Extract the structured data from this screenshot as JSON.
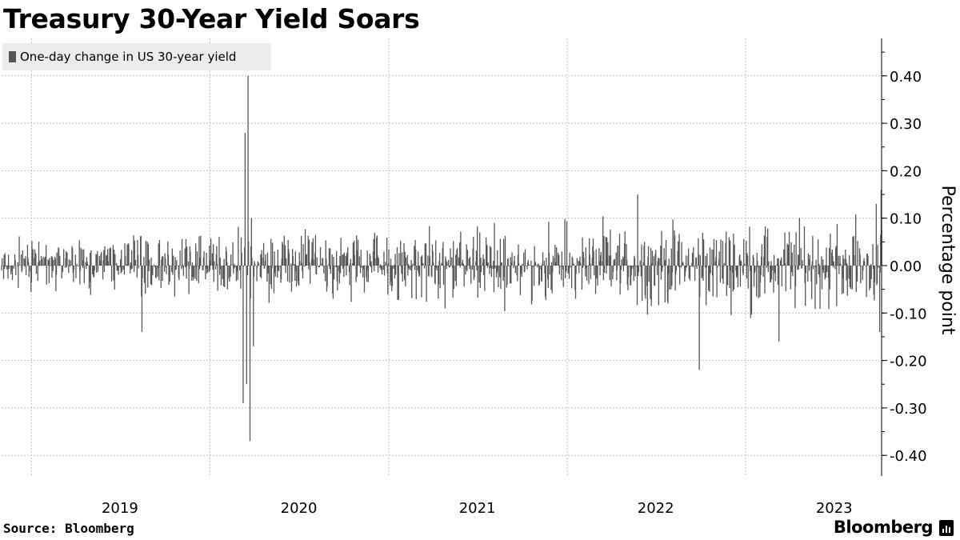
{
  "title": "Treasury 30-Year Yield Soars",
  "legend_label": "One-day change in US 30-year yield",
  "source": "Source: Bloomberg",
  "brand": "Bloomberg",
  "colors": {
    "bar": "#555555",
    "grid": "#bdbdbd",
    "legend_bg": "#ececec"
  },
  "brand_icon": "bloomberg-terminal-icon",
  "chart_data": {
    "type": "bar",
    "title": "Treasury 30-Year Yield Soars",
    "ylabel": "Percentage point",
    "xlabel": "",
    "ylim": [
      -0.45,
      0.48
    ],
    "yticks": [
      0.4,
      0.3,
      0.2,
      0.1,
      0.0,
      -0.1,
      -0.2,
      -0.3,
      -0.4
    ],
    "ytick_labels": [
      "0.40",
      "0.30",
      "0.20",
      "0.10",
      "0.00",
      "-0.10",
      "-0.20",
      "-0.30",
      "-0.40"
    ],
    "x_range": [
      "2018-11-01",
      "2023-10-06"
    ],
    "xtick_labels": [
      "2019",
      "2020",
      "2021",
      "2022",
      "2023"
    ],
    "xgrid_dates": [
      "2019-01-01",
      "2020-01-01",
      "2021-01-01",
      "2022-01-01",
      "2023-01-01"
    ],
    "legend_position": "top-left",
    "grid": true,
    "series": [
      {
        "name": "One-day change in US 30-year yield",
        "notable_points": [
          {
            "date": "2020-03-09",
            "value": -0.29
          },
          {
            "date": "2020-03-13",
            "value": 0.28
          },
          {
            "date": "2020-03-16",
            "value": -0.25
          },
          {
            "date": "2020-03-19",
            "value": 0.4
          },
          {
            "date": "2020-03-23",
            "value": -0.37
          },
          {
            "date": "2020-03-26",
            "value": 0.1
          },
          {
            "date": "2020-03-30",
            "value": -0.17
          },
          {
            "date": "2019-08-15",
            "value": -0.14
          },
          {
            "date": "2022-05-25",
            "value": 0.15
          },
          {
            "date": "2022-09-28",
            "value": -0.22
          },
          {
            "date": "2023-03-10",
            "value": -0.16
          },
          {
            "date": "2023-09-25",
            "value": 0.13
          },
          {
            "date": "2023-10-02",
            "value": -0.14
          },
          {
            "date": "2023-10-05",
            "value": 0.16
          }
        ],
        "typical_range": [
          -0.1,
          0.1
        ]
      }
    ]
  }
}
